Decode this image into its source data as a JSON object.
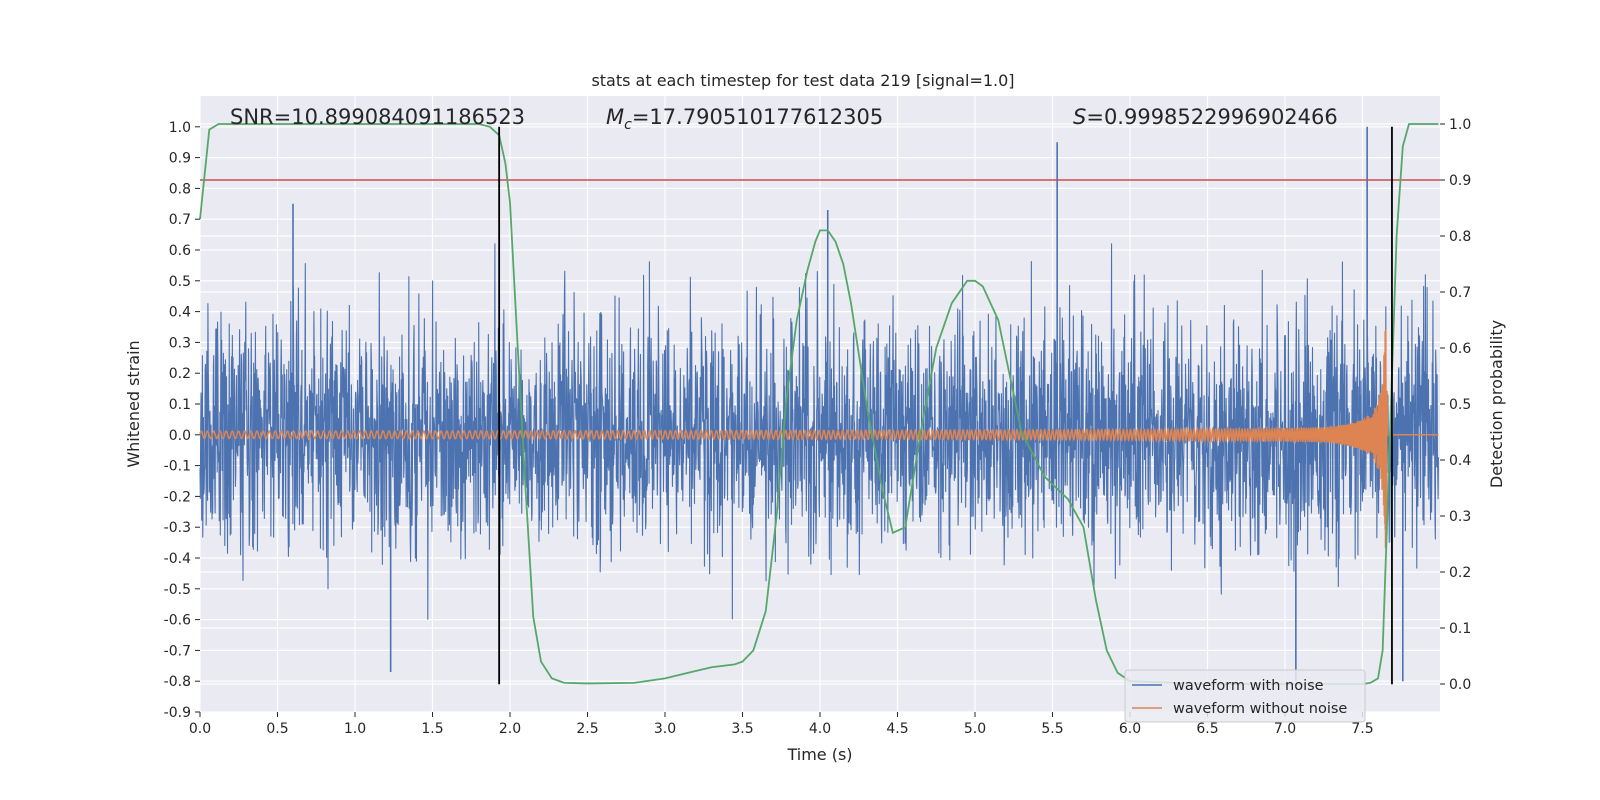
{
  "chart_data": {
    "type": "line",
    "title": "stats at each timestep for test data 219 [signal=1.0]",
    "xlabel": "Time (s)",
    "ylabel_left": "Whitened strain",
    "ylabel_right": "Detection probability",
    "xlim": [
      0.0,
      8.0
    ],
    "ylim_left": [
      -0.9,
      1.1
    ],
    "ylim_right": [
      -0.05,
      1.05
    ],
    "x_ticks": [
      "0.0",
      "0.5",
      "1.0",
      "1.5",
      "2.0",
      "2.5",
      "3.0",
      "3.5",
      "4.0",
      "4.5",
      "5.0",
      "5.5",
      "6.0",
      "6.5",
      "7.0",
      "7.5"
    ],
    "y_ticks_left": [
      "-0.9",
      "-0.8",
      "-0.7",
      "-0.6",
      "-0.5",
      "-0.4",
      "-0.3",
      "-0.2",
      "-0.1",
      "0.0",
      "0.1",
      "0.2",
      "0.3",
      "0.4",
      "0.5",
      "0.6",
      "0.7",
      "0.8",
      "0.9",
      "1.0"
    ],
    "y_ticks_right": [
      "0.0",
      "0.1",
      "0.2",
      "0.3",
      "0.4",
      "0.5",
      "0.6",
      "0.7",
      "0.8",
      "0.9",
      "1.0"
    ],
    "grid": true,
    "legend_position": "lower-right",
    "annotations": {
      "snr": "SNR=10.899084091186523",
      "mc_symbol": "M",
      "mc_sub": "c",
      "mc_value": "=17.790510177612305",
      "s_symbol": "S",
      "s_value": "=0.9998522996902466"
    },
    "threshold_right": 0.9,
    "vertical_lines_x": [
      1.93,
      7.69
    ],
    "vertical_lines_y_range": [
      -0.81,
      1.0
    ],
    "series": [
      {
        "name": "waveform with noise",
        "axis": "left",
        "color": "#4c72b0",
        "noise_amplitude": 0.3,
        "spikes": [
          [
            0.6,
            0.75
          ],
          [
            1.23,
            -0.77
          ],
          [
            4.05,
            0.73
          ],
          [
            5.53,
            0.95
          ],
          [
            7.07,
            -0.8
          ],
          [
            7.53,
            1.0
          ],
          [
            7.76,
            -0.8
          ]
        ]
      },
      {
        "name": "waveform without noise",
        "axis": "left",
        "color": "#dd8452",
        "chirp": {
          "t_merge": 7.66,
          "amp_start": 0.012,
          "amp_peak": 0.37
        }
      },
      {
        "name": "",
        "axis": "right",
        "color": "#55a868",
        "points": [
          [
            0,
            0.83
          ],
          [
            0.06,
            0.99
          ],
          [
            0.12,
            1.0
          ],
          [
            1.8,
            1.0
          ],
          [
            1.87,
            0.995
          ],
          [
            1.93,
            0.98
          ],
          [
            1.97,
            0.93
          ],
          [
            2.0,
            0.86
          ],
          [
            2.05,
            0.6
          ],
          [
            2.1,
            0.35
          ],
          [
            2.15,
            0.12
          ],
          [
            2.2,
            0.04
          ],
          [
            2.27,
            0.01
          ],
          [
            2.35,
            0.002
          ],
          [
            2.5,
            0.001
          ],
          [
            2.8,
            0.002
          ],
          [
            3.0,
            0.01
          ],
          [
            3.15,
            0.02
          ],
          [
            3.3,
            0.03
          ],
          [
            3.45,
            0.035
          ],
          [
            3.5,
            0.04
          ],
          [
            3.57,
            0.06
          ],
          [
            3.65,
            0.13
          ],
          [
            3.72,
            0.3
          ],
          [
            3.78,
            0.5
          ],
          [
            3.85,
            0.65
          ],
          [
            3.92,
            0.74
          ],
          [
            3.97,
            0.79
          ],
          [
            4.0,
            0.81
          ],
          [
            4.05,
            0.81
          ],
          [
            4.1,
            0.79
          ],
          [
            4.15,
            0.75
          ],
          [
            4.2,
            0.68
          ],
          [
            4.3,
            0.5
          ],
          [
            4.4,
            0.35
          ],
          [
            4.47,
            0.27
          ],
          [
            4.55,
            0.28
          ],
          [
            4.65,
            0.45
          ],
          [
            4.75,
            0.6
          ],
          [
            4.85,
            0.68
          ],
          [
            4.95,
            0.72
          ],
          [
            5.0,
            0.72
          ],
          [
            5.05,
            0.71
          ],
          [
            5.15,
            0.65
          ],
          [
            5.3,
            0.45
          ],
          [
            5.45,
            0.37
          ],
          [
            5.6,
            0.33
          ],
          [
            5.7,
            0.28
          ],
          [
            5.78,
            0.15
          ],
          [
            5.85,
            0.06
          ],
          [
            5.92,
            0.02
          ],
          [
            6.0,
            0.005
          ],
          [
            6.5,
            0.0
          ],
          [
            7.0,
            0.0
          ],
          [
            7.3,
            0.0
          ],
          [
            7.5,
            0.0
          ],
          [
            7.55,
            0.002
          ],
          [
            7.6,
            0.01
          ],
          [
            7.63,
            0.06
          ],
          [
            7.66,
            0.3
          ],
          [
            7.69,
            0.55
          ],
          [
            7.72,
            0.8
          ],
          [
            7.76,
            0.96
          ],
          [
            7.8,
            1.0
          ],
          [
            7.99,
            1.0
          ]
        ]
      }
    ]
  }
}
